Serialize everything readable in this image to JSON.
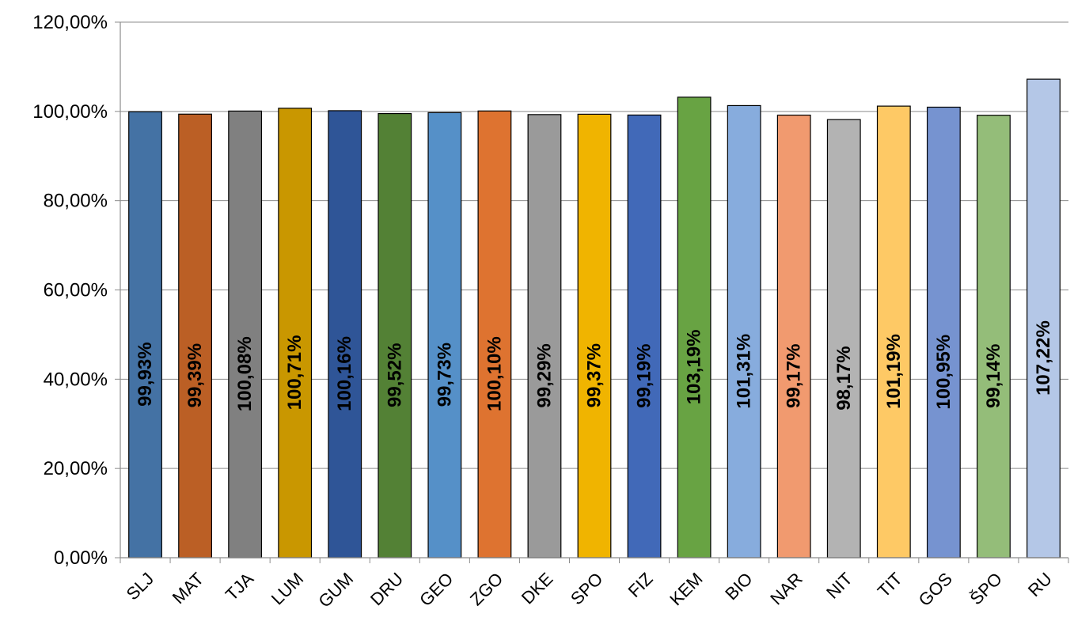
{
  "chart_data": {
    "type": "bar",
    "title": "",
    "xlabel": "",
    "ylabel": "",
    "ylim": [
      0,
      120
    ],
    "yticks": [
      "0,00%",
      "20,00%",
      "40,00%",
      "60,00%",
      "80,00%",
      "100,00%",
      "120,00%"
    ],
    "grid": true,
    "legend": "none",
    "categories": [
      "SLJ",
      "MAT",
      "TJA",
      "LUM",
      "GUM",
      "DRU",
      "GEO",
      "ZGO",
      "DKE",
      "SPO",
      "FIZ",
      "KEM",
      "BIO",
      "NAR",
      "NIT",
      "TIT",
      "GOS",
      "ŠPO",
      "RU"
    ],
    "values": [
      99.93,
      99.39,
      100.08,
      100.71,
      100.16,
      99.52,
      99.73,
      100.1,
      99.29,
      99.37,
      99.19,
      103.19,
      101.31,
      99.17,
      98.17,
      101.19,
      100.95,
      99.14,
      107.22
    ],
    "data_labels": [
      "99,93%",
      "99,39%",
      "100,08%",
      "100,71%",
      "100,16%",
      "99,52%",
      "99,73%",
      "100,10%",
      "99,29%",
      "99,37%",
      "99,19%",
      "103,19%",
      "101,31%",
      "99,17%",
      "98,17%",
      "101,19%",
      "100,95%",
      "99,14%",
      "107,22%"
    ],
    "colors": [
      "#4472a4",
      "#bb5f25",
      "#808080",
      "#c99700",
      "#2f5597",
      "#538135",
      "#5590c8",
      "#de7330",
      "#9a9a9a",
      "#f0b400",
      "#4169b8",
      "#68a343",
      "#87acdd",
      "#f19a6f",
      "#b3b3b3",
      "#fec965",
      "#7693d0",
      "#94bd79",
      "#b4c7e7"
    ]
  }
}
